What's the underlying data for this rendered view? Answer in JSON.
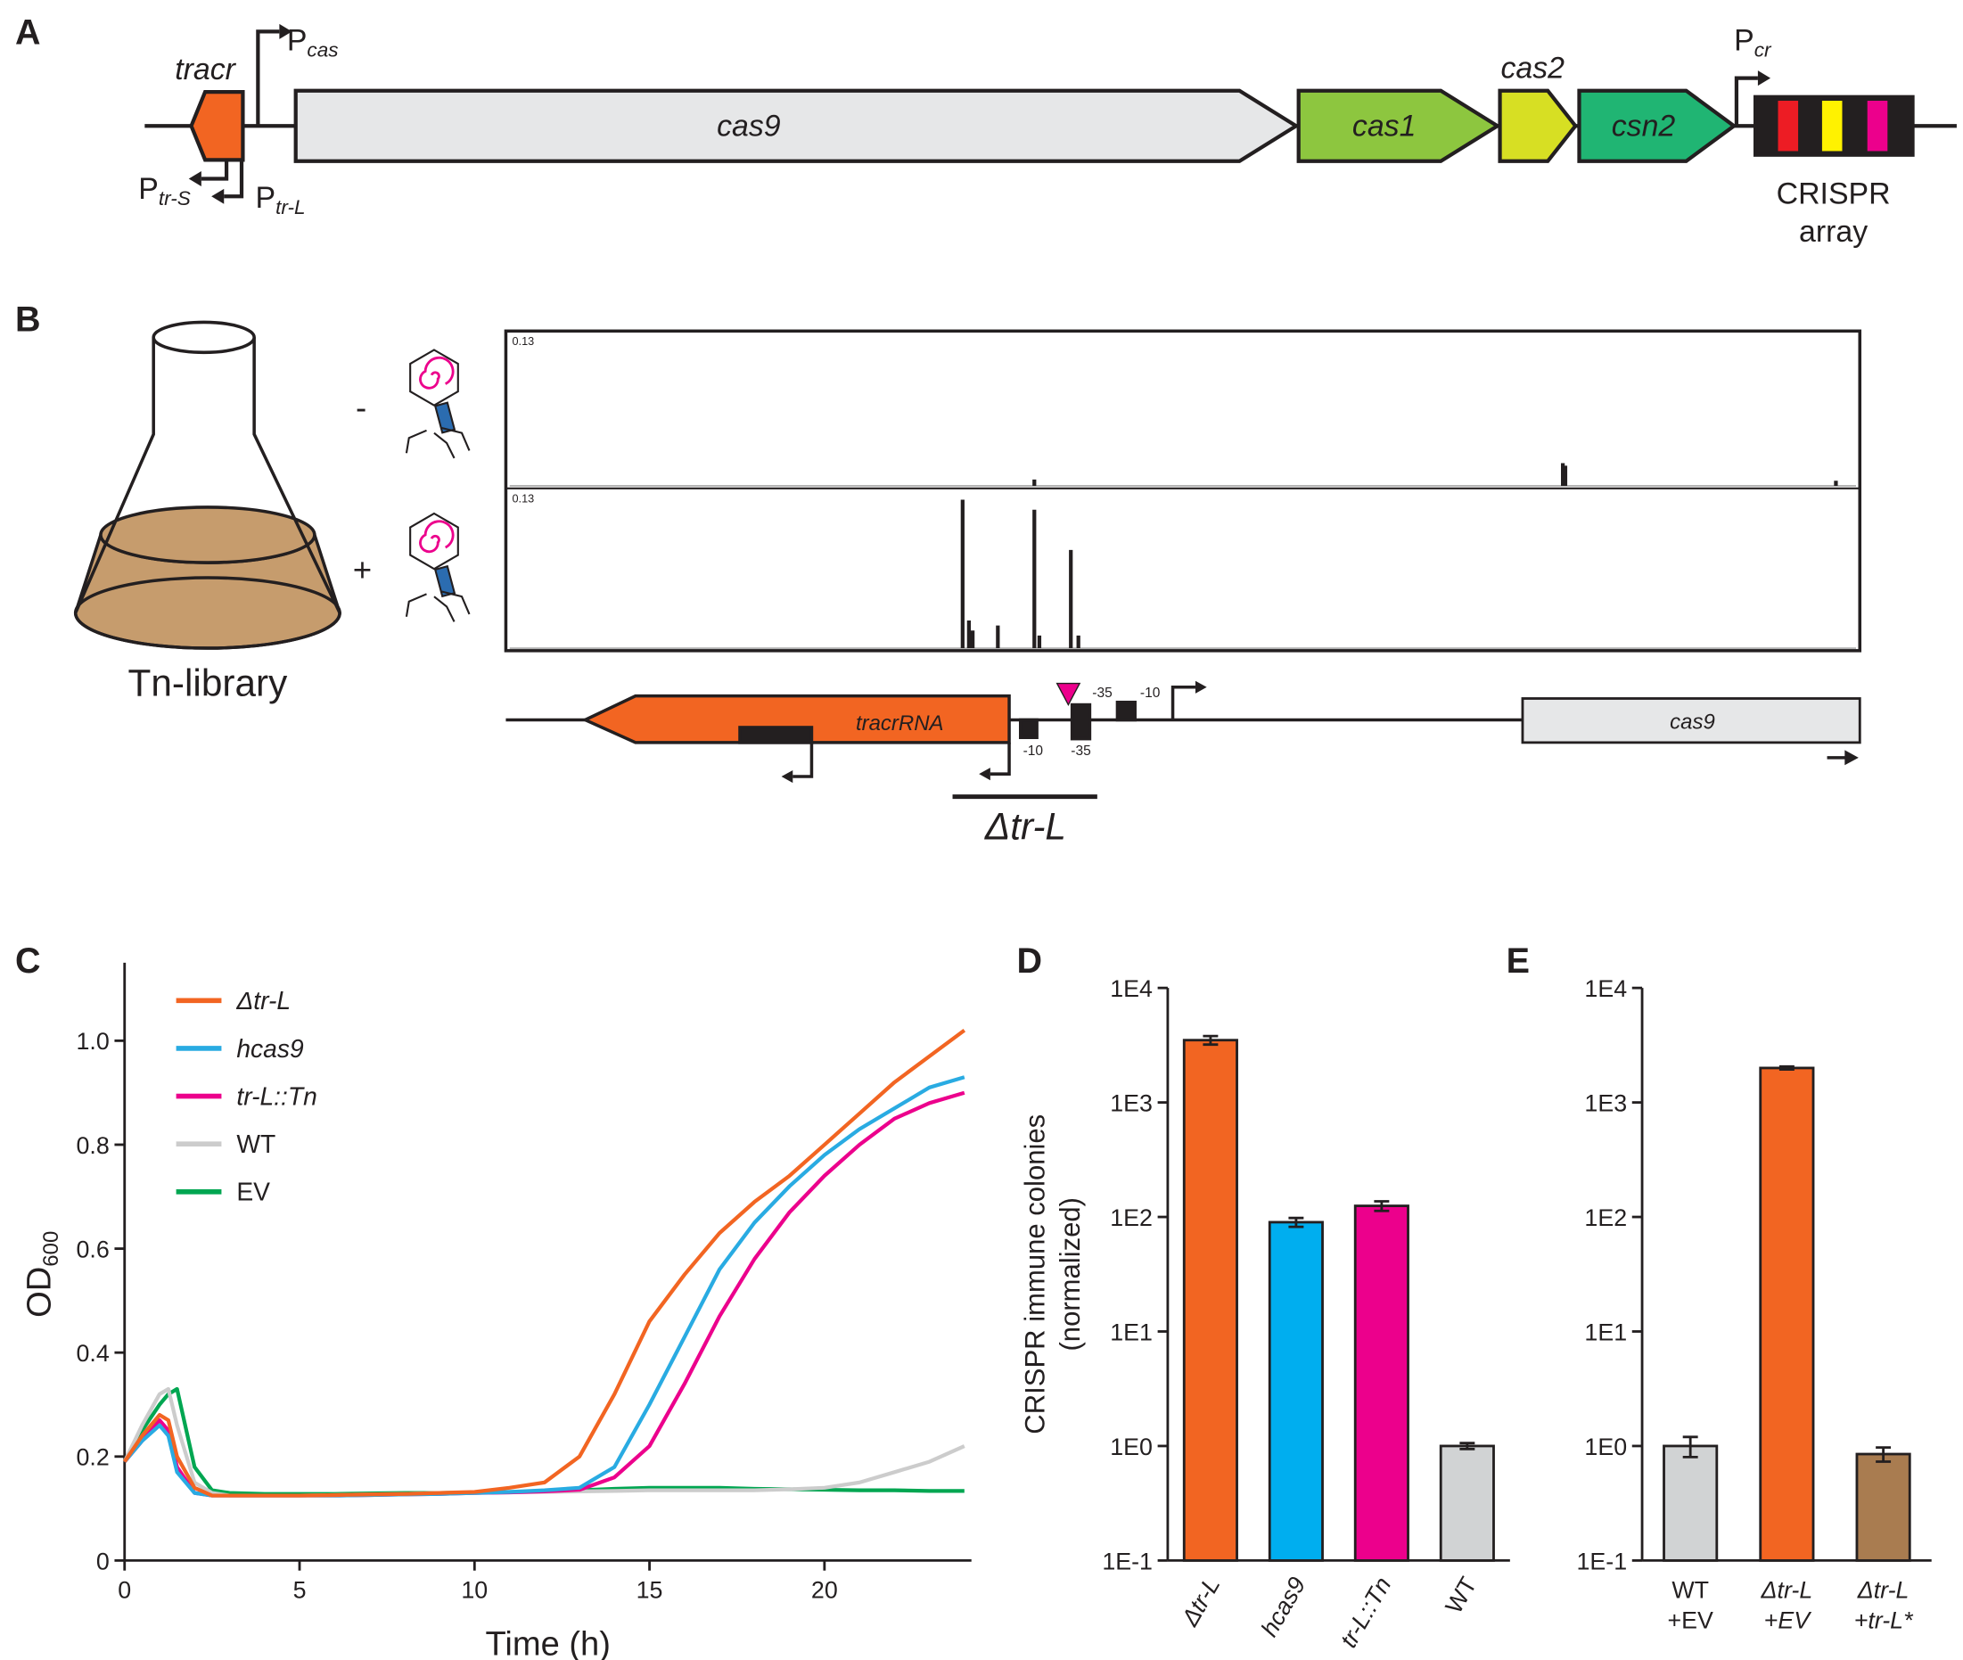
{
  "panel_labels": [
    "A",
    "B",
    "C",
    "D",
    "E"
  ],
  "panel_a": {
    "genes": [
      "tracr",
      "cas9",
      "cas1",
      "cas2",
      "csn2"
    ],
    "promoters": [
      {
        "main": "P",
        "sub": "cas"
      },
      {
        "main": "P",
        "sub": "tr-S"
      },
      {
        "main": "P",
        "sub": "tr-L"
      },
      {
        "main": "P",
        "sub": "cr"
      }
    ],
    "array_label": [
      "CRISPR",
      "array"
    ]
  },
  "panel_b": {
    "conditions": [
      "-",
      "+"
    ],
    "library": "Tn-library",
    "track_max": [
      0.13,
      0.13
    ],
    "map": {
      "tracr": "tracrRNA",
      "gene": "cas9",
      "boxes": [
        "-35",
        "-10",
        "-10",
        "-35"
      ],
      "deletion": "Δtr-L"
    }
  },
  "chart_data": [
    {
      "type": "line",
      "xlabel": "Time (h)",
      "ylabel": {
        "main": "OD",
        "sub": "600"
      },
      "x": [
        0,
        0.5,
        1,
        1.25,
        1.5,
        2,
        2.5,
        3,
        4,
        5,
        6,
        7,
        8,
        9,
        10,
        11,
        12,
        13,
        14,
        15,
        16,
        17,
        18,
        19,
        20,
        21,
        22,
        23,
        24
      ],
      "xlim": [
        0,
        24.2
      ],
      "xticks": [
        0,
        5,
        10,
        15,
        20
      ],
      "ylim": [
        0,
        1.15
      ],
      "yticks": [
        0,
        0.2,
        0.4,
        0.6,
        0.8,
        {
          "value": 1,
          "label": "1.0"
        }
      ],
      "series": [
        {
          "name": "Δtr-L",
          "color": "#f26522",
          "values": [
            0.19,
            0.24,
            0.28,
            0.27,
            0.2,
            0.14,
            0.125,
            0.125,
            0.125,
            0.125,
            0.126,
            0.127,
            0.128,
            0.13,
            0.132,
            0.14,
            0.15,
            0.2,
            0.32,
            0.46,
            0.55,
            0.63,
            0.69,
            0.74,
            0.8,
            0.86,
            0.92,
            0.97,
            1.02
          ]
        },
        {
          "name": "hcas9",
          "color": "#29abe2",
          "values": [
            0.19,
            0.23,
            0.26,
            0.24,
            0.17,
            0.13,
            0.125,
            0.125,
            0.125,
            0.125,
            0.125,
            0.126,
            0.127,
            0.128,
            0.13,
            0.132,
            0.135,
            0.14,
            0.18,
            0.3,
            0.43,
            0.56,
            0.65,
            0.72,
            0.78,
            0.83,
            0.87,
            0.91,
            0.93
          ]
        },
        {
          "name": "tr-L::Tn",
          "color": "#ec008c",
          "values": [
            0.19,
            0.23,
            0.27,
            0.25,
            0.18,
            0.13,
            0.125,
            0.125,
            0.125,
            0.125,
            0.125,
            0.126,
            0.127,
            0.128,
            0.13,
            0.131,
            0.133,
            0.136,
            0.16,
            0.22,
            0.34,
            0.47,
            0.58,
            0.67,
            0.74,
            0.8,
            0.85,
            0.88,
            0.9
          ]
        },
        {
          "name": "WT",
          "color": "#cccccc",
          "values": [
            0.19,
            0.26,
            0.32,
            0.33,
            0.26,
            0.15,
            0.13,
            0.125,
            0.125,
            0.125,
            0.126,
            0.127,
            0.128,
            0.13,
            0.13,
            0.131,
            0.132,
            0.133,
            0.134,
            0.135,
            0.135,
            0.135,
            0.135,
            0.137,
            0.14,
            0.15,
            0.17,
            0.19,
            0.22
          ]
        },
        {
          "name": "EV",
          "color": "#00a651",
          "values": [
            0.19,
            0.25,
            0.3,
            0.32,
            0.33,
            0.18,
            0.135,
            0.13,
            0.128,
            0.128,
            0.128,
            0.129,
            0.13,
            0.13,
            0.131,
            0.132,
            0.133,
            0.135,
            0.138,
            0.14,
            0.14,
            0.14,
            0.138,
            0.137,
            0.136,
            0.135,
            0.135,
            0.134,
            0.134
          ]
        }
      ]
    },
    {
      "type": "bar",
      "log": true,
      "ylabel": [
        "CRISPR immune colonies",
        "(normalized)"
      ],
      "categories": [
        "Δtr-L",
        "hcas9",
        "tr-L::Tn",
        "WT"
      ],
      "values": [
        3500,
        90,
        125,
        1
      ],
      "errors": [
        300,
        8,
        12,
        0.06
      ],
      "colors": [
        "#f26522",
        "#00aeef",
        "#ec008c",
        "#d1d3d4"
      ],
      "ylim": [
        0.1,
        10000
      ],
      "yticks": [
        {
          "value": 0.1,
          "label": "1E-1"
        },
        {
          "value": 1,
          "label": "1E0"
        },
        {
          "value": 10,
          "label": "1E1"
        },
        {
          "value": 100,
          "label": "1E2"
        },
        {
          "value": 1000,
          "label": "1E3"
        },
        {
          "value": 10000,
          "label": "1E4"
        }
      ]
    },
    {
      "type": "bar",
      "log": true,
      "categories": [
        [
          "WT",
          "+EV"
        ],
        [
          "Δtr-L",
          "+EV"
        ],
        [
          "Δtr-L",
          "+tr-L*"
        ]
      ],
      "values": [
        1,
        2000,
        0.85
      ],
      "errors": [
        0.2,
        60,
        0.12
      ],
      "colors": [
        "#d1d3d4",
        "#f26522",
        "#a97c50"
      ],
      "ylim": [
        0.1,
        10000
      ],
      "yticks": [
        {
          "value": 0.1,
          "label": "1E-1"
        },
        {
          "value": 1,
          "label": "1E0"
        },
        {
          "value": 10,
          "label": "1E1"
        },
        {
          "value": 100,
          "label": "1E2"
        },
        {
          "value": 1000,
          "label": "1E3"
        },
        {
          "value": 10000,
          "label": "1E4"
        }
      ]
    }
  ]
}
